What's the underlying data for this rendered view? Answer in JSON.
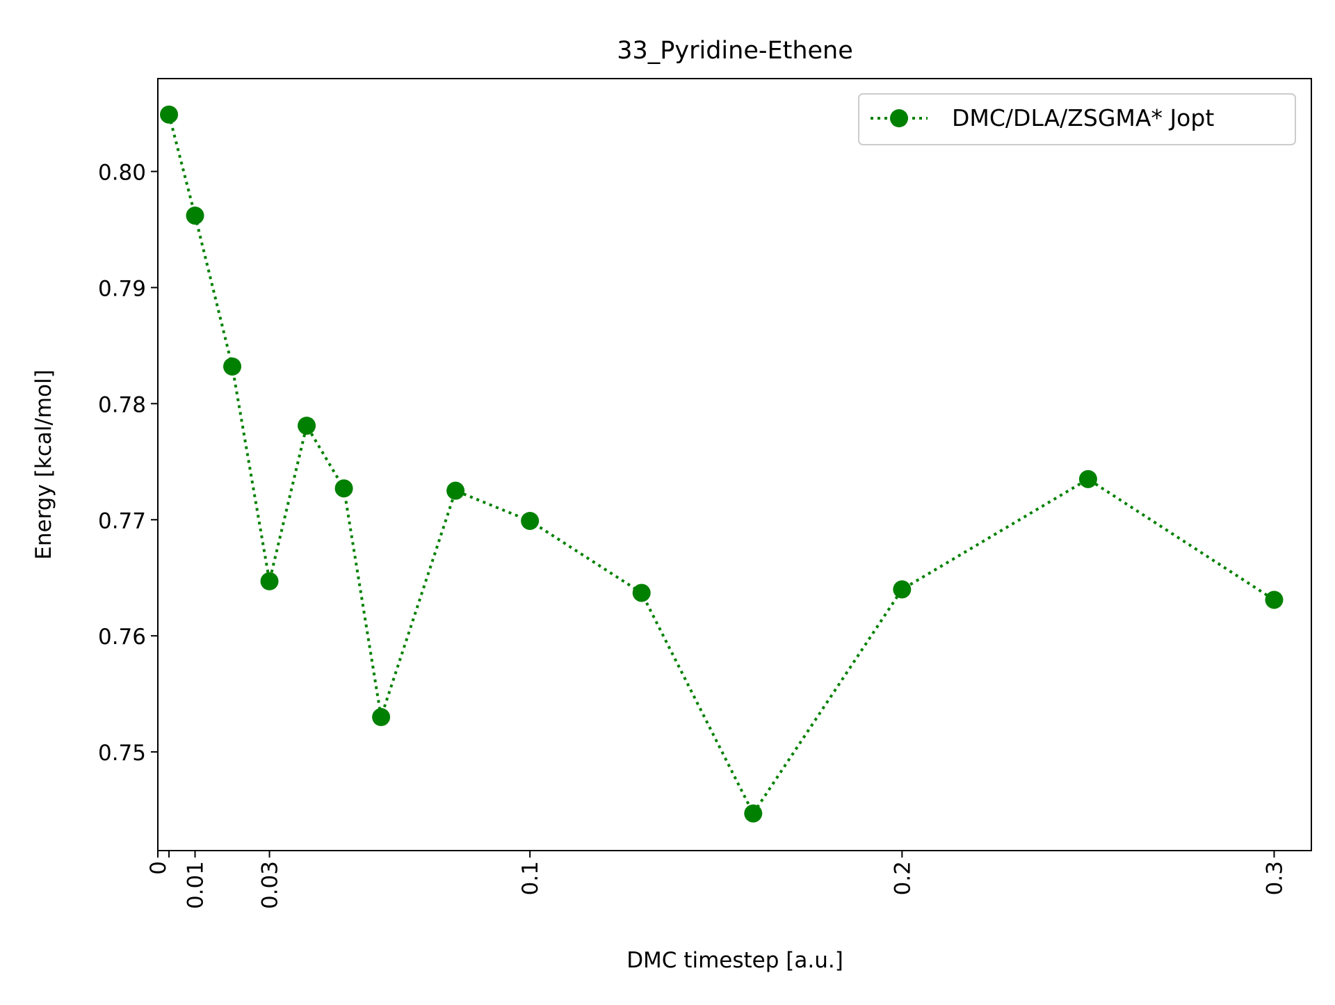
{
  "chart_data": {
    "type": "line",
    "title": "33_Pyridine-Ethene",
    "xlabel": "DMC timestep [a.u.]",
    "ylabel": "Energy [kcal/mol]",
    "xlim": [
      0,
      0.31
    ],
    "ylim": [
      0.7415,
      0.808
    ],
    "x_ticks": [
      {
        "value": 0,
        "label": "0"
      },
      {
        "value": 0.003,
        "label": ""
      },
      {
        "value": 0.01,
        "label": "0.01"
      },
      {
        "value": 0.03,
        "label": "0.03"
      },
      {
        "value": 0.1,
        "label": "0.1"
      },
      {
        "value": 0.2,
        "label": "0.2"
      },
      {
        "value": 0.3,
        "label": "0.3"
      }
    ],
    "y_ticks": [
      {
        "value": 0.75,
        "label": "0.75"
      },
      {
        "value": 0.76,
        "label": "0.76"
      },
      {
        "value": 0.77,
        "label": "0.77"
      },
      {
        "value": 0.78,
        "label": "0.78"
      },
      {
        "value": 0.79,
        "label": "0.79"
      },
      {
        "value": 0.8,
        "label": "0.80"
      }
    ],
    "grid": false,
    "legend": {
      "position": "top-right"
    },
    "series": [
      {
        "name": "DMC/DLA/ZSGMA* Jopt",
        "color": "#008000",
        "line_style": "dotted",
        "marker": "circle",
        "x": [
          0.003,
          0.01,
          0.02,
          0.03,
          0.04,
          0.05,
          0.06,
          0.08,
          0.1,
          0.13,
          0.16,
          0.2,
          0.25,
          0.3
        ],
        "y": [
          0.8049,
          0.7962,
          0.7832,
          0.7647,
          0.7781,
          0.7727,
          0.753,
          0.7725,
          0.7699,
          0.7637,
          0.7447,
          0.764,
          0.7735,
          0.7631
        ]
      }
    ]
  }
}
